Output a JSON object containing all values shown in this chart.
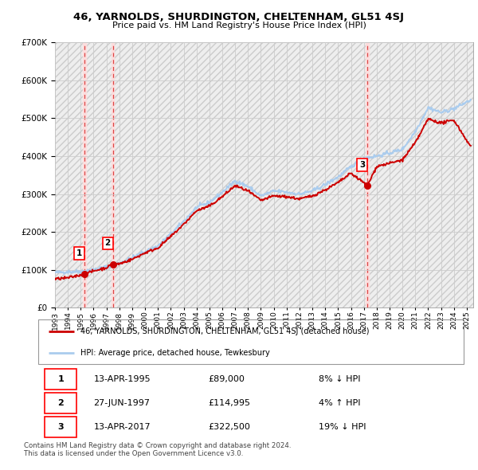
{
  "title": "46, YARNOLDS, SHURDINGTON, CHELTENHAM, GL51 4SJ",
  "subtitle": "Price paid vs. HM Land Registry's House Price Index (HPI)",
  "legend_label_red": "46, YARNOLDS, SHURDINGTON, CHELTENHAM, GL51 4SJ (detached house)",
  "legend_label_blue": "HPI: Average price, detached house, Tewkesbury",
  "footer": "Contains HM Land Registry data © Crown copyright and database right 2024.\nThis data is licensed under the Open Government Licence v3.0.",
  "sales": [
    {
      "num": 1,
      "date": "13-APR-1995",
      "price": 89000,
      "pct": "8% ↓ HPI",
      "year": 1995.28
    },
    {
      "num": 2,
      "date": "27-JUN-1997",
      "price": 114995,
      "pct": "4% ↑ HPI",
      "year": 1997.49
    },
    {
      "num": 3,
      "date": "13-APR-2017",
      "price": 322500,
      "pct": "19% ↓ HPI",
      "year": 2017.28
    }
  ],
  "ylim": [
    0,
    700000
  ],
  "yticks": [
    0,
    100000,
    200000,
    300000,
    400000,
    500000,
    600000,
    700000
  ],
  "xmin": 1993.0,
  "xmax": 2025.5,
  "hpi_color": "#aaccee",
  "sale_color": "#cc0000",
  "vline_color": "#dd4444",
  "shade_color": "#ffdddd",
  "grid_color": "#cccccc",
  "hatch_facecolor": "#eeeeee",
  "hatch_edgecolor": "#cccccc"
}
